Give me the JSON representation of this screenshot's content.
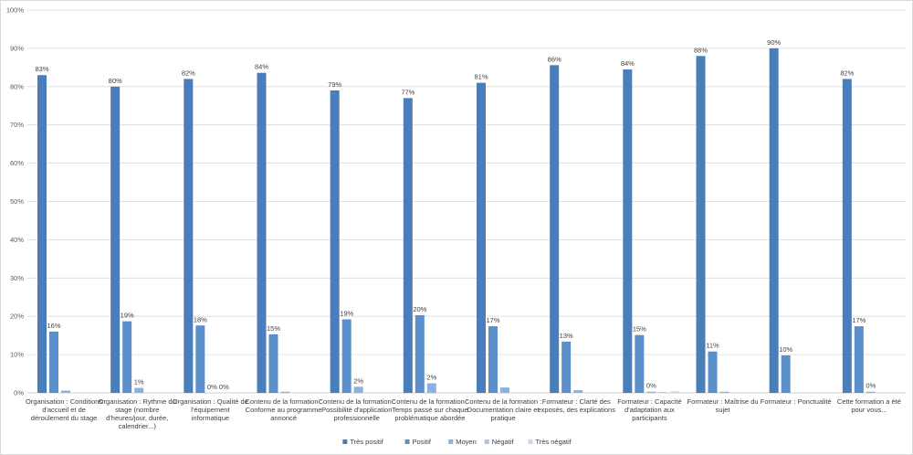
{
  "chart_data": {
    "type": "bar",
    "title": "",
    "xlabel": "",
    "ylabel": "",
    "ylim": [
      0,
      100
    ],
    "yticks": [
      "0%",
      "10%",
      "20%",
      "30%",
      "40%",
      "50%",
      "60%",
      "70%",
      "80%",
      "90%",
      "100%"
    ],
    "grid": true,
    "legend_position": "bottom",
    "colors": [
      "#4a7ebb",
      "#5a8fcc",
      "#8bb1df",
      "#a9c5e8",
      "#c6d9f0"
    ],
    "categories": [
      [
        "Organisation : Conditions",
        "d'accueil et de",
        "déroulement du stage"
      ],
      [
        "Organisation : Rythme du",
        "stage (nombre",
        "d'heures/jour, durée,",
        "calendrier...)"
      ],
      [
        "Organisation : Qualité de",
        "l'équipement",
        "informatique"
      ],
      [
        "Contenu de la formation :",
        "Conforme au programme",
        "annoncé"
      ],
      [
        "Contenu de la formation :",
        "Possibilité d'application",
        "professionnelle"
      ],
      [
        "Contenu de la formation :",
        "Temps passé sur chaque",
        "problématique abordée"
      ],
      [
        "Contenu de la formation :",
        "Documentation claire et",
        "pratique"
      ],
      [
        "Formateur : Clarté des",
        "exposés, des explications"
      ],
      [
        "Formateur : Capacité",
        "d'adaptation aux",
        "participants"
      ],
      [
        "Formateur : Maîtrise du",
        "sujet"
      ],
      [
        "Formateur : Ponctualité"
      ],
      [
        "Cette formation a été",
        "pour vous..."
      ]
    ],
    "series": [
      {
        "name": "Très positif",
        "values": [
          83,
          80,
          82,
          83.6,
          79,
          77,
          81,
          85.6,
          84.5,
          88,
          90,
          82
        ],
        "labels": [
          "83%",
          "80%",
          "82%",
          "84%",
          "79%",
          "77%",
          "81%",
          "86%",
          "84%",
          "88%",
          "90%",
          "82%"
        ]
      },
      {
        "name": "Positif",
        "values": [
          16,
          18.7,
          17.6,
          15.3,
          19.2,
          20.3,
          17.4,
          13.4,
          15.1,
          10.8,
          9.8,
          17.4
        ],
        "labels": [
          "16%",
          "19%",
          "18%",
          "15%",
          "19%",
          "20%",
          "17%",
          "13%",
          "15%",
          "11%",
          "10%",
          "17%"
        ]
      },
      {
        "name": "Moyen",
        "values": [
          0.6,
          1.3,
          0,
          0.3,
          1.6,
          2.5,
          1.4,
          0.7,
          0.3,
          0.3,
          0,
          0.3
        ],
        "labels": [
          "",
          "1%",
          "0%",
          "",
          "2%",
          "2%",
          "",
          "",
          "0%",
          "",
          "",
          "0%"
        ]
      },
      {
        "name": "Négatif",
        "values": [
          0,
          0,
          0,
          0,
          0,
          0,
          0,
          0,
          0.2,
          0,
          0,
          0
        ],
        "labels": [
          "",
          "",
          "0%",
          "",
          "",
          "",
          "",
          "",
          "",
          "",
          "",
          ""
        ]
      },
      {
        "name": "Très négatif",
        "values": [
          0,
          0,
          0,
          0,
          0,
          0,
          0,
          0,
          0.4,
          0,
          0,
          0
        ],
        "labels": [
          "",
          "",
          "",
          "",
          "",
          "",
          "",
          "",
          "",
          "",
          "",
          ""
        ]
      }
    ]
  }
}
